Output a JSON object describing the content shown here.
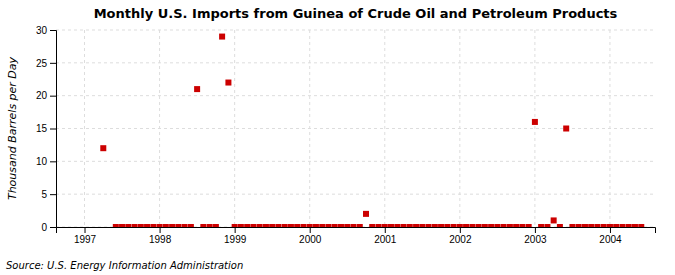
{
  "chart_data": {
    "type": "scatter",
    "title": "Monthly U.S. Imports from Guinea of Crude Oil and Petroleum Products",
    "ylabel": "Thousand Barrels per Day",
    "source": "Source: U.S. Energy Information Administration",
    "color": "#cc0000",
    "marker": "square",
    "x": [
      1997.25,
      1997.417,
      1997.5,
      1997.583,
      1997.667,
      1997.75,
      1997.833,
      1997.917,
      1998.0,
      1998.083,
      1998.167,
      1998.25,
      1998.333,
      1998.417,
      1998.5,
      1998.583,
      1998.667,
      1998.75,
      1998.833,
      1998.917,
      1999.0,
      1999.083,
      1999.167,
      1999.25,
      1999.333,
      1999.417,
      1999.5,
      1999.583,
      1999.667,
      1999.75,
      1999.833,
      1999.917,
      2000.0,
      2000.083,
      2000.167,
      2000.25,
      2000.333,
      2000.417,
      2000.5,
      2000.583,
      2000.667,
      2000.75,
      2000.833,
      2000.917,
      2001.0,
      2001.083,
      2001.167,
      2001.25,
      2001.333,
      2001.417,
      2001.5,
      2001.583,
      2001.667,
      2001.75,
      2001.833,
      2001.917,
      2002.0,
      2002.083,
      2002.167,
      2002.25,
      2002.333,
      2002.417,
      2002.5,
      2002.583,
      2002.667,
      2002.75,
      2002.833,
      2002.917,
      2003.0,
      2003.083,
      2003.167,
      2003.25,
      2003.333,
      2003.417,
      2003.5,
      2003.583,
      2003.667,
      2003.75,
      2003.833,
      2003.917,
      2004.0,
      2004.083,
      2004.167,
      2004.25,
      2004.333,
      2004.417
    ],
    "values": [
      12,
      0,
      0,
      0,
      0,
      0,
      0,
      0,
      0,
      0,
      0,
      0,
      0,
      0,
      21,
      0,
      0,
      0,
      29,
      22,
      0,
      0,
      0,
      0,
      0,
      0,
      0,
      0,
      0,
      0,
      0,
      0,
      0,
      0,
      0,
      0,
      0,
      0,
      0,
      0,
      0,
      2,
      0,
      0,
      0,
      0,
      0,
      0,
      0,
      0,
      0,
      0,
      0,
      0,
      0,
      0,
      0,
      0,
      0,
      0,
      0,
      0,
      0,
      0,
      0,
      0,
      0,
      0,
      16,
      0,
      0,
      1,
      0,
      15,
      0,
      0,
      0,
      0,
      0,
      0,
      0,
      0,
      0,
      0,
      0,
      0
    ],
    "xlim": [
      1996.62,
      2004.6
    ],
    "xticks": [
      1997,
      1998,
      1999,
      2000,
      2001,
      2002,
      2003,
      2004
    ],
    "ylim": [
      0,
      30
    ],
    "yticks": [
      0,
      5,
      10,
      15,
      20,
      25,
      30
    ],
    "grid": true
  }
}
